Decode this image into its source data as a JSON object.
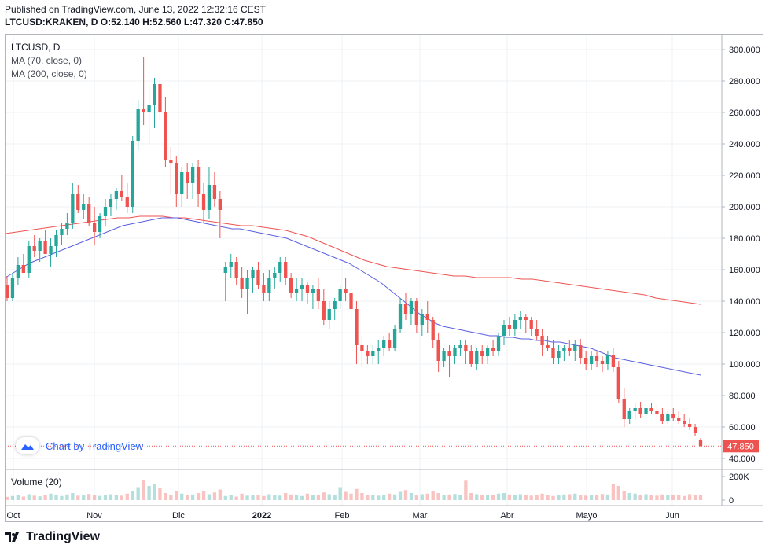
{
  "header": {
    "published": "Published on TradingView.com, June 13, 2022 12:32:16 CEST",
    "symbol_line": "LTCUSD:KRAKEN, D O:52.140 H:52.560 L:47.320 C:47.850"
  },
  "legend": {
    "symbol": "LTCUSD, D",
    "ma70": "MA (70, close, 0)",
    "ma200": "MA (200, close, 0)"
  },
  "volume_legend": "Volume (20)",
  "watermark": "Chart by TradingView",
  "footer_brand": "TradingView",
  "colors": {
    "up": "#26a69a",
    "down": "#ef5350",
    "ma70": "#5b5fe0",
    "ma200": "#ef5350",
    "last_price_bg": "#ef5350"
  },
  "chart_data": {
    "type": "candlestick",
    "price_axis": {
      "min": 40,
      "max": 300,
      "ticks": [
        "300.000",
        "280.000",
        "260.000",
        "240.000",
        "220.000",
        "200.000",
        "180.000",
        "160.000",
        "140.000",
        "120.000",
        "100.000",
        "80.000",
        "60.000",
        "40.000"
      ]
    },
    "volume_axis": {
      "ticks": [
        "200K",
        "0"
      ]
    },
    "x_labels": [
      "Oct",
      "Nov",
      "Dic",
      "2022",
      "Feb",
      "Mar",
      "Abr",
      "Mayo",
      "Jun"
    ],
    "last_price": "47.850",
    "candles": [
      [
        150,
        156,
        140,
        142
      ],
      [
        142,
        158,
        140,
        155
      ],
      [
        155,
        168,
        150,
        163
      ],
      [
        163,
        170,
        158,
        158
      ],
      [
        158,
        178,
        155,
        175
      ],
      [
        175,
        182,
        168,
        172
      ],
      [
        172,
        180,
        165,
        178
      ],
      [
        178,
        185,
        170,
        170
      ],
      [
        170,
        180,
        162,
        175
      ],
      [
        175,
        185,
        168,
        182
      ],
      [
        182,
        190,
        176,
        186
      ],
      [
        186,
        196,
        182,
        190
      ],
      [
        190,
        215,
        186,
        208
      ],
      [
        208,
        214,
        196,
        198
      ],
      [
        198,
        208,
        192,
        202
      ],
      [
        202,
        206,
        188,
        190
      ],
      [
        190,
        200,
        176,
        184
      ],
      [
        184,
        196,
        180,
        194
      ],
      [
        194,
        205,
        188,
        200
      ],
      [
        200,
        208,
        194,
        205
      ],
      [
        205,
        212,
        198,
        210
      ],
      [
        210,
        220,
        204,
        206
      ],
      [
        206,
        215,
        196,
        200
      ],
      [
        200,
        245,
        196,
        242
      ],
      [
        242,
        268,
        236,
        262
      ],
      [
        262,
        295,
        252,
        260
      ],
      [
        260,
        275,
        240,
        265
      ],
      [
        265,
        282,
        250,
        278
      ],
      [
        278,
        282,
        255,
        260
      ],
      [
        260,
        270,
        225,
        230
      ],
      [
        230,
        238,
        208,
        228
      ],
      [
        228,
        232,
        200,
        208
      ],
      [
        208,
        225,
        200,
        222
      ],
      [
        222,
        228,
        205,
        215
      ],
      [
        215,
        228,
        205,
        225
      ],
      [
        225,
        230,
        200,
        208
      ],
      [
        208,
        215,
        190,
        198
      ],
      [
        198,
        225,
        192,
        214
      ],
      [
        214,
        222,
        200,
        205
      ],
      [
        205,
        210,
        180,
        198
      ],
      [
        158,
        165,
        140,
        162
      ],
      [
        162,
        170,
        155,
        165
      ],
      [
        165,
        168,
        150,
        155
      ],
      [
        155,
        162,
        142,
        148
      ],
      [
        148,
        160,
        132,
        155
      ],
      [
        155,
        162,
        145,
        160
      ],
      [
        160,
        165,
        148,
        150
      ],
      [
        150,
        158,
        140,
        145
      ],
      [
        145,
        160,
        140,
        155
      ],
      [
        155,
        162,
        148,
        158
      ],
      [
        158,
        168,
        152,
        165
      ],
      [
        165,
        168,
        150,
        155
      ],
      [
        155,
        158,
        142,
        145
      ],
      [
        145,
        155,
        140,
        148
      ],
      [
        148,
        155,
        140,
        150
      ],
      [
        150,
        152,
        138,
        145
      ],
      [
        145,
        150,
        135,
        148
      ],
      [
        148,
        155,
        135,
        140
      ],
      [
        140,
        148,
        125,
        128
      ],
      [
        128,
        140,
        122,
        135
      ],
      [
        135,
        142,
        128,
        140
      ],
      [
        140,
        150,
        135,
        148
      ],
      [
        148,
        155,
        140,
        145
      ],
      [
        145,
        150,
        128,
        135
      ],
      [
        135,
        140,
        100,
        112
      ],
      [
        112,
        118,
        98,
        108
      ],
      [
        108,
        112,
        100,
        105
      ],
      [
        105,
        112,
        100,
        108
      ],
      [
        108,
        115,
        100,
        110
      ],
      [
        110,
        118,
        105,
        115
      ],
      [
        115,
        120,
        108,
        110
      ],
      [
        110,
        125,
        108,
        122
      ],
      [
        122,
        142,
        120,
        138
      ],
      [
        138,
        145,
        128,
        132
      ],
      [
        132,
        142,
        125,
        140
      ],
      [
        140,
        142,
        120,
        125
      ],
      [
        125,
        135,
        118,
        132
      ],
      [
        132,
        140,
        120,
        128
      ],
      [
        128,
        130,
        110,
        115
      ],
      [
        115,
        120,
        95,
        102
      ],
      [
        102,
        110,
        98,
        108
      ],
      [
        108,
        112,
        92,
        105
      ],
      [
        105,
        112,
        100,
        110
      ],
      [
        110,
        115,
        105,
        112
      ],
      [
        112,
        115,
        100,
        108
      ],
      [
        108,
        112,
        98,
        100
      ],
      [
        100,
        110,
        96,
        108
      ],
      [
        108,
        112,
        100,
        105
      ],
      [
        105,
        112,
        100,
        110
      ],
      [
        110,
        115,
        105,
        108
      ],
      [
        108,
        120,
        105,
        118
      ],
      [
        118,
        128,
        112,
        125
      ],
      [
        125,
        130,
        118,
        122
      ],
      [
        122,
        132,
        118,
        128
      ],
      [
        128,
        134,
        122,
        130
      ],
      [
        130,
        132,
        120,
        128
      ],
      [
        128,
        130,
        118,
        122
      ],
      [
        122,
        128,
        115,
        118
      ],
      [
        118,
        122,
        105,
        112
      ],
      [
        112,
        118,
        108,
        110
      ],
      [
        110,
        115,
        100,
        104
      ],
      [
        104,
        112,
        100,
        108
      ],
      [
        108,
        112,
        102,
        110
      ],
      [
        110,
        115,
        105,
        108
      ],
      [
        108,
        115,
        102,
        112
      ],
      [
        112,
        116,
        100,
        104
      ],
      [
        104,
        108,
        96,
        100
      ],
      [
        100,
        108,
        96,
        105
      ],
      [
        105,
        108,
        98,
        102
      ],
      [
        102,
        105,
        95,
        100
      ],
      [
        100,
        108,
        96,
        106
      ],
      [
        106,
        110,
        95,
        98
      ],
      [
        98,
        102,
        75,
        78
      ],
      [
        78,
        85,
        60,
        65
      ],
      [
        65,
        72,
        62,
        70
      ],
      [
        70,
        75,
        65,
        72
      ],
      [
        72,
        76,
        66,
        68
      ],
      [
        68,
        74,
        65,
        72
      ],
      [
        72,
        75,
        68,
        70
      ],
      [
        70,
        74,
        65,
        68
      ],
      [
        68,
        72,
        62,
        64
      ],
      [
        64,
        70,
        62,
        68
      ],
      [
        68,
        72,
        64,
        66
      ],
      [
        66,
        70,
        62,
        64
      ],
      [
        64,
        68,
        60,
        62
      ],
      [
        62,
        66,
        58,
        60
      ],
      [
        60,
        62,
        54,
        56
      ],
      [
        52,
        53,
        47,
        48
      ]
    ],
    "volumes": [
      28,
      35,
      45,
      30,
      50,
      38,
      32,
      40,
      55,
      42,
      35,
      48,
      60,
      38,
      45,
      52,
      40,
      36,
      45,
      50,
      42,
      38,
      55,
      80,
      110,
      170,
      120,
      140,
      100,
      60,
      45,
      80,
      55,
      40,
      48,
      60,
      75,
      50,
      65,
      90,
      35,
      40,
      30,
      55,
      38,
      42,
      45,
      35,
      50,
      40,
      38,
      60,
      48,
      42,
      35,
      55,
      45,
      40,
      65,
      50,
      45,
      110,
      70,
      55,
      95,
      60,
      40,
      42,
      38,
      45,
      55,
      48,
      70,
      85,
      60,
      45,
      50,
      55,
      75,
      60,
      40,
      48,
      52,
      45,
      165,
      60,
      50,
      45,
      42,
      40,
      55,
      60,
      48,
      45,
      50,
      42,
      38,
      40,
      55,
      45,
      35,
      40,
      48,
      50,
      55,
      42,
      38,
      45,
      40,
      52,
      48,
      140,
      120,
      80,
      60,
      55,
      45,
      50,
      40,
      38,
      48,
      45,
      42,
      40,
      35,
      50,
      45,
      40
    ],
    "ma70": [
      155,
      158,
      161,
      164,
      166,
      168,
      170,
      172,
      174,
      176,
      178,
      180,
      182,
      184,
      186,
      188,
      189,
      190,
      191,
      192,
      193,
      193,
      193,
      192,
      191,
      190,
      189,
      188,
      187,
      186,
      186,
      185,
      184,
      183,
      182,
      181,
      180,
      178,
      176,
      174,
      172,
      170,
      168,
      166,
      164,
      161,
      158,
      155,
      152,
      148,
      144,
      140,
      136,
      132,
      129,
      126,
      124,
      123,
      122,
      121,
      120,
      119,
      118,
      118,
      117,
      117,
      116,
      116,
      115,
      115,
      114,
      114,
      113,
      112,
      111,
      110,
      108,
      106,
      104,
      103,
      102,
      101,
      100,
      99,
      98,
      97,
      96,
      95,
      94,
      93
    ],
    "ma200": [
      183,
      184,
      185,
      186,
      187,
      188,
      189,
      190,
      191,
      192,
      193,
      193,
      194,
      194,
      194,
      193,
      193,
      192,
      191,
      190,
      189,
      188,
      188,
      187,
      186,
      185,
      183,
      181,
      178,
      175,
      172,
      169,
      166,
      164,
      162,
      161,
      160,
      159,
      158,
      157,
      156,
      156,
      155,
      155,
      155,
      155,
      154,
      154,
      153,
      152,
      151,
      150,
      149,
      148,
      147,
      146,
      145,
      144,
      142,
      141,
      140,
      139,
      138
    ]
  }
}
